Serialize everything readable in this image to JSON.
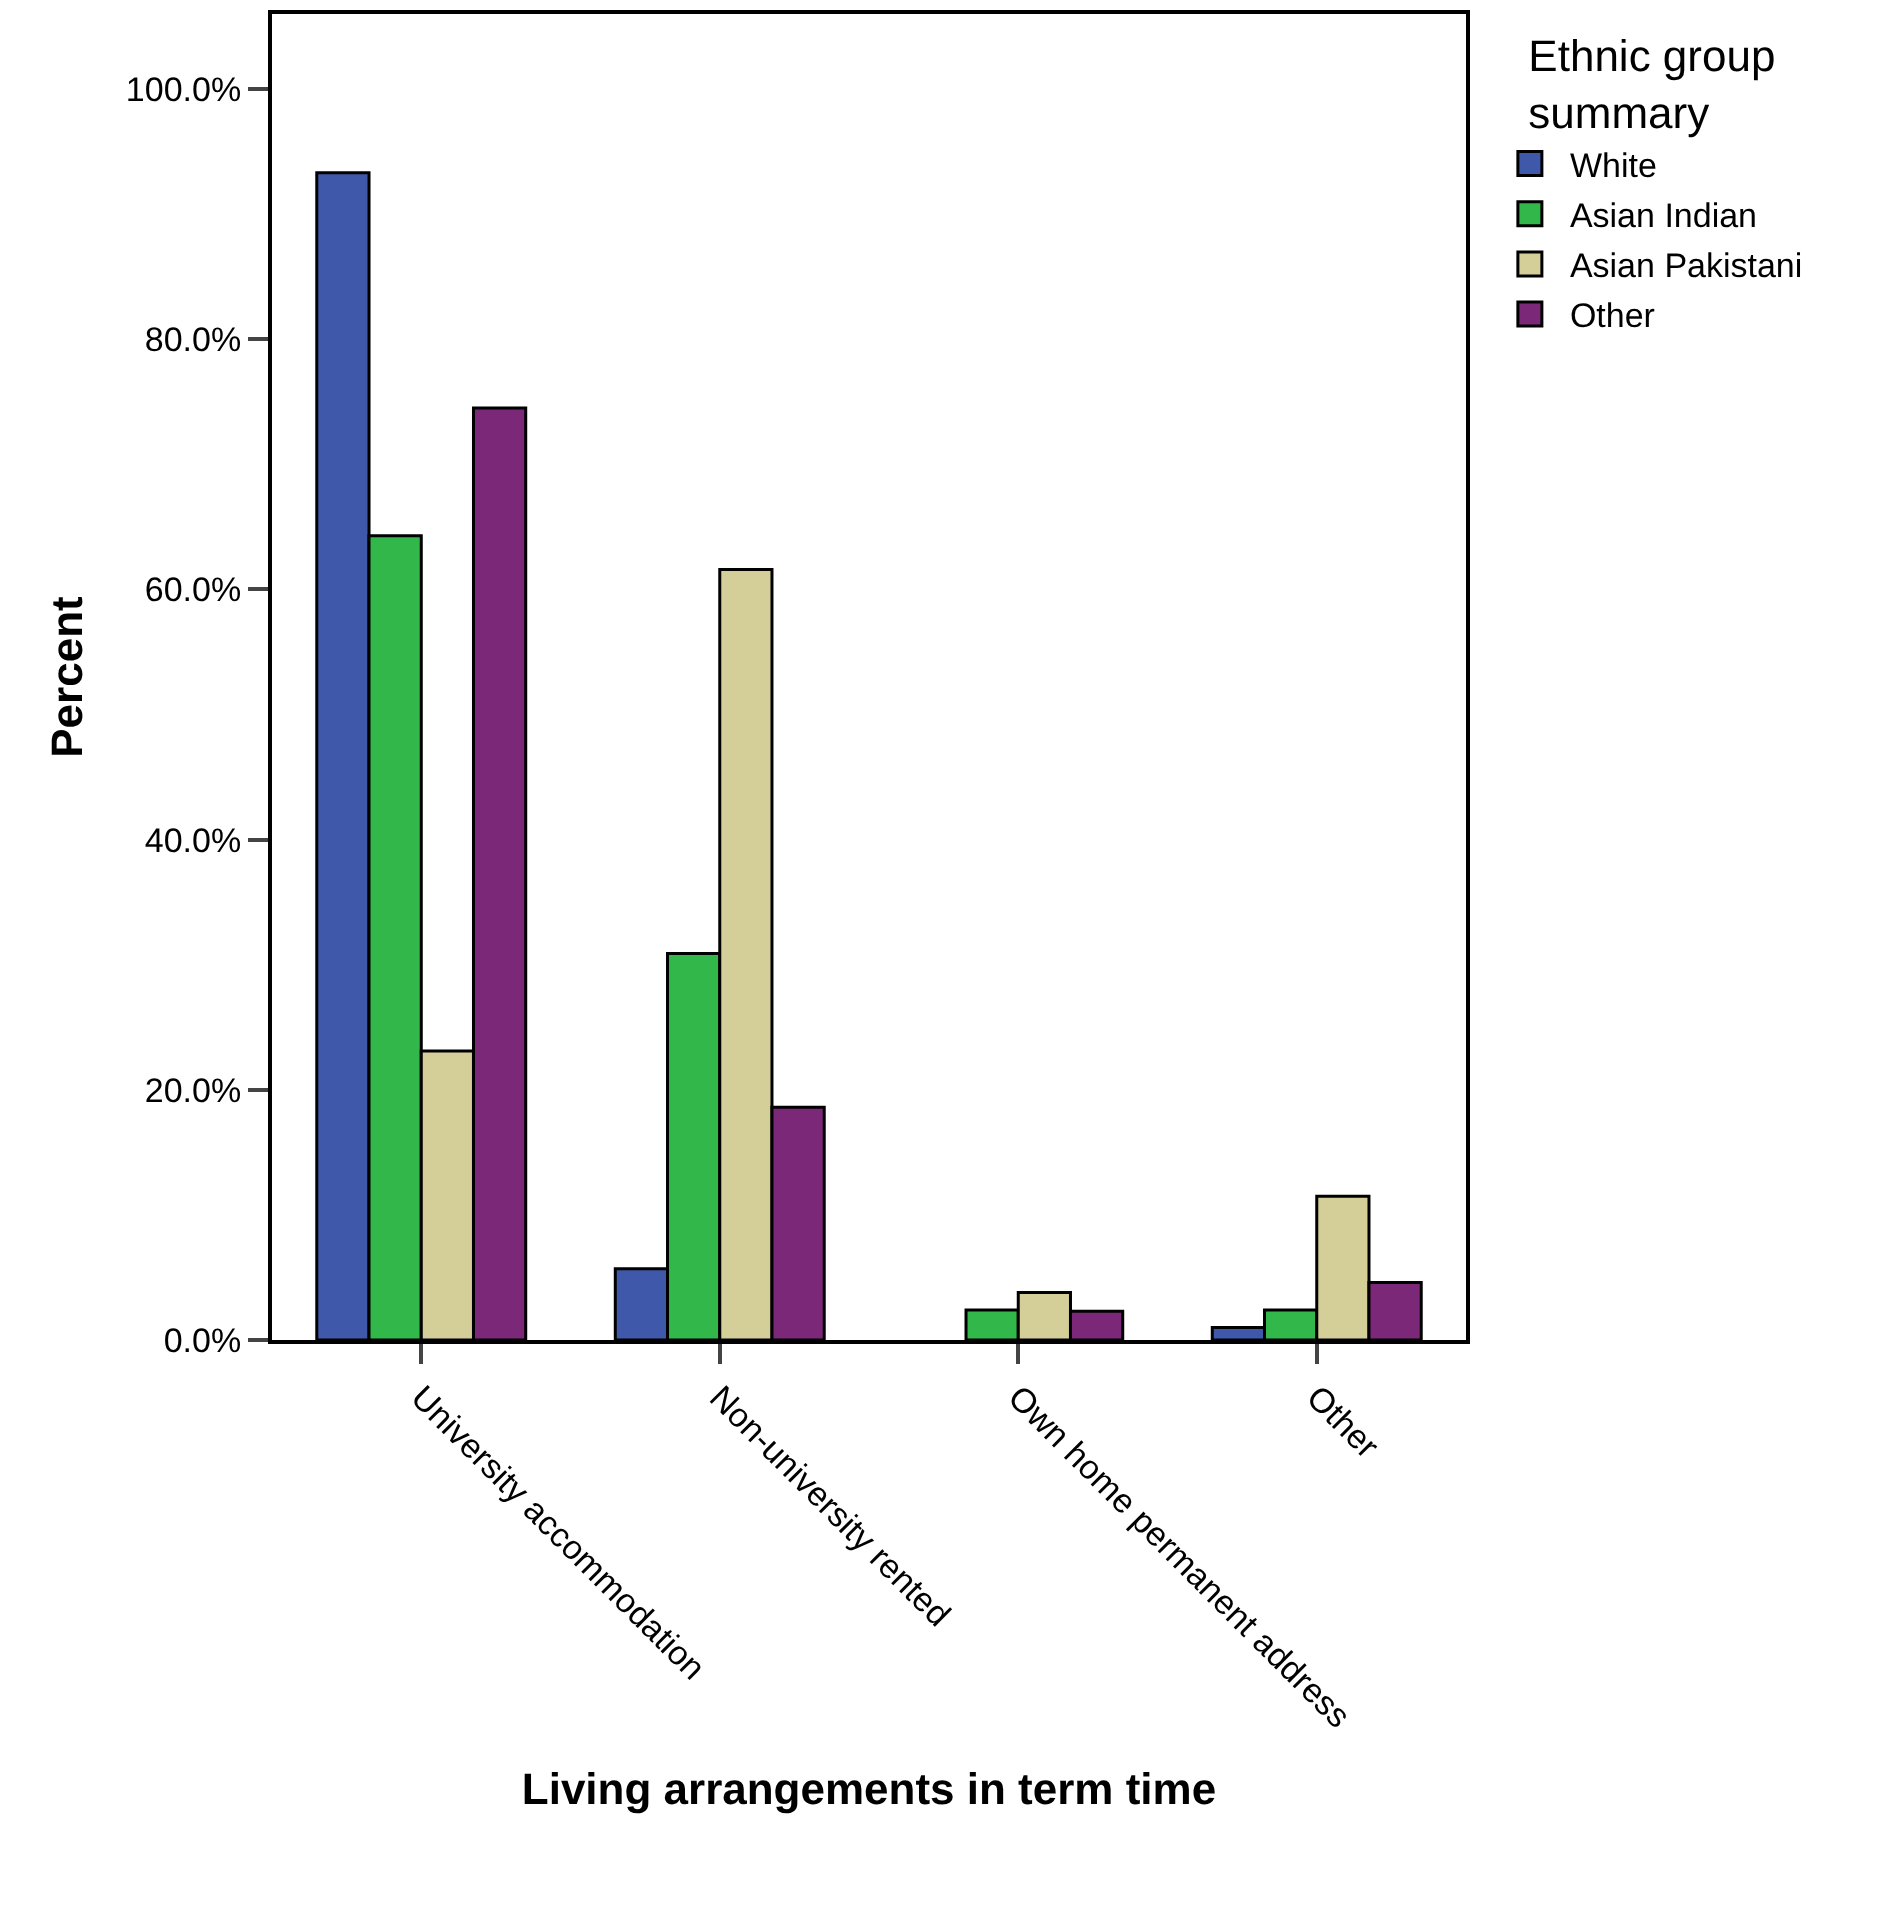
{
  "chart_data": {
    "type": "bar",
    "xlabel": "Living arrangements in term time",
    "ylabel": "Percent",
    "legend_title": "Ethnic group summary",
    "categories": [
      "University accommodation",
      "Non-university rented",
      "Own home permanent address",
      "Other"
    ],
    "series": [
      {
        "name": "White",
        "color": "#3f58aa",
        "values": [
          93.3,
          5.7,
          null,
          1.0
        ]
      },
      {
        "name": "Asian Indian",
        "color": "#32b84a",
        "values": [
          64.3,
          30.9,
          2.4,
          2.4
        ]
      },
      {
        "name": "Asian Pakistani",
        "color": "#d4ce98",
        "values": [
          23.1,
          61.6,
          3.8,
          11.5
        ]
      },
      {
        "name": "Other",
        "color": "#7b2878",
        "values": [
          74.5,
          18.6,
          2.3,
          4.6
        ]
      }
    ],
    "ylim": [
      0,
      106
    ],
    "yticks": [
      {
        "value": 0,
        "label": "0.0%"
      },
      {
        "value": 20,
        "label": "20.0%"
      },
      {
        "value": 40,
        "label": "40.0%"
      },
      {
        "value": 60,
        "label": "60.0%"
      },
      {
        "value": 80,
        "label": "80.0%"
      },
      {
        "value": 100,
        "label": "100.0%"
      }
    ],
    "legend": "top right"
  }
}
